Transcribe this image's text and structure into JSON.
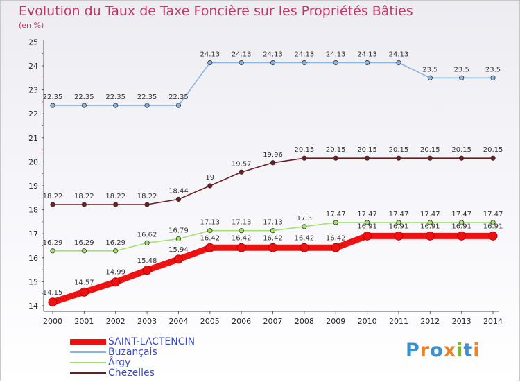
{
  "title": "Evolution du Taux de Taxe Foncière sur les Propriétés Bâties",
  "subtitle": "(en %)",
  "logo": {
    "text": "Proxiti",
    "letters": [
      "P",
      "r",
      "o",
      "x",
      "i",
      "t",
      "i"
    ],
    "colors": [
      "#3a8fd1",
      "#e8852a",
      "#3a8fd1",
      "#e8852a",
      "#7cb82f",
      "#3a8fd1",
      "#e8852a"
    ]
  },
  "chart_data": {
    "type": "line",
    "x": [
      "2000",
      "2001",
      "2002",
      "2003",
      "2004",
      "2005",
      "2006",
      "2007",
      "2008",
      "2009",
      "2010",
      "2011",
      "2012",
      "2013",
      "2014"
    ],
    "ylim": [
      14,
      25
    ],
    "yticks": [
      "14",
      "15",
      "16",
      "17",
      "18",
      "19",
      "20",
      "21",
      "22",
      "23",
      "24",
      "25"
    ],
    "grid": false,
    "legend_position": "bottom-left",
    "series": [
      {
        "name": "Chezelles",
        "color": "#6e1e22",
        "values": [
          18.22,
          18.22,
          18.22,
          18.22,
          18.44,
          19,
          19.57,
          19.96,
          20.15,
          20.15,
          20.15,
          20.15,
          20.15,
          20.15,
          20.15
        ],
        "labels": [
          "18.22",
          "18.22",
          "18.22",
          "18.22",
          "18.44",
          "19",
          "19.57",
          "19.96",
          "20.15",
          "20.15",
          "20.15",
          "20.15",
          "20.15",
          "20.15",
          "20.15"
        ]
      },
      {
        "name": "Ârgy",
        "color": "#a3e36a",
        "values": [
          16.29,
          16.29,
          16.29,
          16.62,
          16.79,
          17.13,
          17.13,
          17.13,
          17.3,
          17.47,
          17.47,
          17.47,
          17.47,
          17.47,
          17.47
        ],
        "labels": [
          "16.29",
          "16.29",
          "16.29",
          "16.62",
          "16.79",
          "17.13",
          "17.13",
          "17.13",
          "17.3",
          "17.47",
          "17.47",
          "17.47",
          "17.47",
          "17.47",
          "17.47"
        ]
      },
      {
        "name": "Buzançais",
        "color": "#8ab4e0",
        "values": [
          22.35,
          22.35,
          22.35,
          22.35,
          22.35,
          24.13,
          24.13,
          24.13,
          24.13,
          24.13,
          24.13,
          24.13,
          23.5,
          23.5,
          23.5
        ],
        "labels": [
          "22.35",
          "22.35",
          "22.35",
          "22.35",
          "22.35",
          "24.13",
          "24.13",
          "24.13",
          "24.13",
          "24.13",
          "24.13",
          "24.13",
          "23.5",
          "23.5",
          "23.5"
        ]
      },
      {
        "name": "SAINT-LACTENCIN",
        "color": "#ee1111",
        "values": [
          14.15,
          14.57,
          14.99,
          15.48,
          15.94,
          16.42,
          16.42,
          16.42,
          16.42,
          16.42,
          16.91,
          16.91,
          16.91,
          16.91,
          16.91
        ],
        "labels": [
          "14.15",
          "14.57",
          "14.99",
          "15.48",
          "15.94",
          "16.42",
          "16.42",
          "16.42",
          "16.42",
          "16.42",
          "16.91",
          "16.91",
          "16.91",
          "16.91",
          "16.91"
        ]
      }
    ],
    "legend_order": [
      "SAINT-LACTENCIN",
      "Buzançais",
      "Ârgy",
      "Chezelles"
    ]
  }
}
